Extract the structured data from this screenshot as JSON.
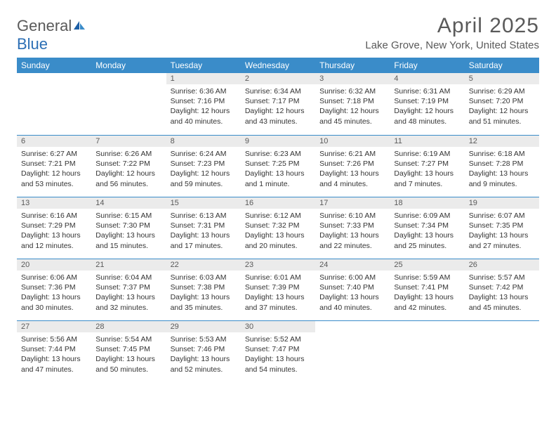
{
  "logo": {
    "general": "General",
    "blue": "Blue"
  },
  "title": "April 2025",
  "location": "Lake Grove, New York, United States",
  "header_bg": "#3a8cc9",
  "day_bg": "#ebebeb",
  "day_headers": [
    "Sunday",
    "Monday",
    "Tuesday",
    "Wednesday",
    "Thursday",
    "Friday",
    "Saturday"
  ],
  "weeks": [
    [
      null,
      null,
      {
        "d": "1",
        "sr": "6:36 AM",
        "ss": "7:16 PM",
        "dl": "12 hours and 40 minutes."
      },
      {
        "d": "2",
        "sr": "6:34 AM",
        "ss": "7:17 PM",
        "dl": "12 hours and 43 minutes."
      },
      {
        "d": "3",
        "sr": "6:32 AM",
        "ss": "7:18 PM",
        "dl": "12 hours and 45 minutes."
      },
      {
        "d": "4",
        "sr": "6:31 AM",
        "ss": "7:19 PM",
        "dl": "12 hours and 48 minutes."
      },
      {
        "d": "5",
        "sr": "6:29 AM",
        "ss": "7:20 PM",
        "dl": "12 hours and 51 minutes."
      }
    ],
    [
      {
        "d": "6",
        "sr": "6:27 AM",
        "ss": "7:21 PM",
        "dl": "12 hours and 53 minutes."
      },
      {
        "d": "7",
        "sr": "6:26 AM",
        "ss": "7:22 PM",
        "dl": "12 hours and 56 minutes."
      },
      {
        "d": "8",
        "sr": "6:24 AM",
        "ss": "7:23 PM",
        "dl": "12 hours and 59 minutes."
      },
      {
        "d": "9",
        "sr": "6:23 AM",
        "ss": "7:25 PM",
        "dl": "13 hours and 1 minute."
      },
      {
        "d": "10",
        "sr": "6:21 AM",
        "ss": "7:26 PM",
        "dl": "13 hours and 4 minutes."
      },
      {
        "d": "11",
        "sr": "6:19 AM",
        "ss": "7:27 PM",
        "dl": "13 hours and 7 minutes."
      },
      {
        "d": "12",
        "sr": "6:18 AM",
        "ss": "7:28 PM",
        "dl": "13 hours and 9 minutes."
      }
    ],
    [
      {
        "d": "13",
        "sr": "6:16 AM",
        "ss": "7:29 PM",
        "dl": "13 hours and 12 minutes."
      },
      {
        "d": "14",
        "sr": "6:15 AM",
        "ss": "7:30 PM",
        "dl": "13 hours and 15 minutes."
      },
      {
        "d": "15",
        "sr": "6:13 AM",
        "ss": "7:31 PM",
        "dl": "13 hours and 17 minutes."
      },
      {
        "d": "16",
        "sr": "6:12 AM",
        "ss": "7:32 PM",
        "dl": "13 hours and 20 minutes."
      },
      {
        "d": "17",
        "sr": "6:10 AM",
        "ss": "7:33 PM",
        "dl": "13 hours and 22 minutes."
      },
      {
        "d": "18",
        "sr": "6:09 AM",
        "ss": "7:34 PM",
        "dl": "13 hours and 25 minutes."
      },
      {
        "d": "19",
        "sr": "6:07 AM",
        "ss": "7:35 PM",
        "dl": "13 hours and 27 minutes."
      }
    ],
    [
      {
        "d": "20",
        "sr": "6:06 AM",
        "ss": "7:36 PM",
        "dl": "13 hours and 30 minutes."
      },
      {
        "d": "21",
        "sr": "6:04 AM",
        "ss": "7:37 PM",
        "dl": "13 hours and 32 minutes."
      },
      {
        "d": "22",
        "sr": "6:03 AM",
        "ss": "7:38 PM",
        "dl": "13 hours and 35 minutes."
      },
      {
        "d": "23",
        "sr": "6:01 AM",
        "ss": "7:39 PM",
        "dl": "13 hours and 37 minutes."
      },
      {
        "d": "24",
        "sr": "6:00 AM",
        "ss": "7:40 PM",
        "dl": "13 hours and 40 minutes."
      },
      {
        "d": "25",
        "sr": "5:59 AM",
        "ss": "7:41 PM",
        "dl": "13 hours and 42 minutes."
      },
      {
        "d": "26",
        "sr": "5:57 AM",
        "ss": "7:42 PM",
        "dl": "13 hours and 45 minutes."
      }
    ],
    [
      {
        "d": "27",
        "sr": "5:56 AM",
        "ss": "7:44 PM",
        "dl": "13 hours and 47 minutes."
      },
      {
        "d": "28",
        "sr": "5:54 AM",
        "ss": "7:45 PM",
        "dl": "13 hours and 50 minutes."
      },
      {
        "d": "29",
        "sr": "5:53 AM",
        "ss": "7:46 PM",
        "dl": "13 hours and 52 minutes."
      },
      {
        "d": "30",
        "sr": "5:52 AM",
        "ss": "7:47 PM",
        "dl": "13 hours and 54 minutes."
      },
      null,
      null,
      null
    ]
  ],
  "labels": {
    "sunrise": "Sunrise: ",
    "sunset": "Sunset: ",
    "daylight": "Daylight: "
  }
}
